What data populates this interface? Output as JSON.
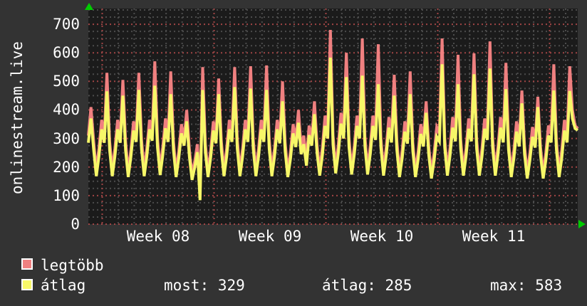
{
  "title_vertical": "onlinestream.live",
  "colors": {
    "bg_outer": "#333333",
    "bg_plot": "#1b1b1b",
    "grid_minor": "#4c4c4c",
    "grid_major": "#a04545",
    "series_legtobb": "#ef8080",
    "series_atlag": "#f7f768",
    "arrow_green": "#00cc00",
    "text": "#ffffff"
  },
  "legend": {
    "item1": "legtöbb",
    "item2": "átlag"
  },
  "stats": {
    "most": "most: 329",
    "atlag": "átlag: 285",
    "max": "max: 583"
  },
  "chart_data": {
    "type": "line",
    "title": "onlinestream.live",
    "xlabel": "",
    "ylabel": "",
    "x_tick_labels": [
      "Week 08",
      "Week 09",
      "Week 10",
      "Week 11"
    ],
    "y_ticks": [
      0,
      100,
      200,
      300,
      400,
      500,
      600,
      700
    ],
    "ylim": [
      0,
      755
    ],
    "grid": "dotted; minor y every 25, major y every 100 (red); minor x daily, major x weekly (red)",
    "legend_position": "bottom-left",
    "samples_per_day": 6,
    "days_visible": 30.6,
    "series": [
      {
        "name": "legtöbb",
        "color": "#ef8080",
        "values": [
          310,
          410,
          290,
          190,
          265,
          365,
          310,
          530,
          290,
          190,
          265,
          365,
          310,
          505,
          290,
          185,
          260,
          360,
          315,
          530,
          295,
          190,
          265,
          365,
          320,
          570,
          300,
          195,
          270,
          370,
          315,
          535,
          290,
          185,
          255,
          350,
          300,
          400,
          260,
          175,
          220,
          280,
          100,
          550,
          280,
          185,
          260,
          360,
          310,
          510,
          290,
          190,
          265,
          365,
          315,
          550,
          295,
          190,
          265,
          365,
          315,
          553,
          295,
          190,
          265,
          365,
          315,
          556,
          295,
          190,
          265,
          365,
          310,
          500,
          285,
          185,
          255,
          350,
          295,
          400,
          270,
          310,
          230,
          345,
          300,
          430,
          275,
          190,
          270,
          380,
          330,
          680,
          310,
          200,
          280,
          390,
          330,
          600,
          300,
          195,
          275,
          380,
          330,
          650,
          305,
          195,
          275,
          380,
          325,
          630,
          300,
          190,
          270,
          375,
          315,
          523,
          290,
          185,
          260,
          360,
          310,
          535,
          285,
          185,
          255,
          350,
          300,
          430,
          270,
          180,
          250,
          340,
          320,
          650,
          300,
          190,
          270,
          375,
          320,
          593,
          295,
          190,
          265,
          370,
          320,
          598,
          295,
          190,
          265,
          370,
          325,
          640,
          300,
          190,
          270,
          375,
          315,
          565,
          290,
          185,
          260,
          360,
          300,
          468,
          275,
          180,
          250,
          340,
          295,
          446,
          270,
          180,
          250,
          345,
          315,
          560,
          290,
          185,
          260,
          365,
          315,
          553,
          400,
          345,
          335
        ]
      },
      {
        "name": "átlag",
        "color": "#f7f768",
        "values": [
          285,
          370,
          260,
          168,
          238,
          332,
          285,
          465,
          260,
          168,
          238,
          332,
          285,
          450,
          258,
          165,
          235,
          328,
          288,
          470,
          262,
          168,
          238,
          332,
          292,
          485,
          268,
          172,
          242,
          336,
          288,
          455,
          260,
          165,
          230,
          318,
          275,
          360,
          235,
          155,
          198,
          252,
          84,
          470,
          252,
          165,
          235,
          328,
          283,
          455,
          260,
          168,
          238,
          332,
          288,
          480,
          264,
          168,
          238,
          332,
          288,
          475,
          264,
          168,
          238,
          332,
          288,
          470,
          264,
          168,
          238,
          332,
          283,
          430,
          256,
          165,
          230,
          318,
          270,
          355,
          245,
          280,
          205,
          312,
          275,
          385,
          248,
          170,
          242,
          344,
          300,
          583,
          278,
          178,
          250,
          352,
          300,
          515,
          270,
          174,
          246,
          344,
          300,
          520,
          272,
          174,
          246,
          344,
          295,
          490,
          268,
          170,
          242,
          338,
          286,
          450,
          260,
          165,
          232,
          324,
          282,
          455,
          256,
          165,
          228,
          316,
          272,
          390,
          242,
          160,
          224,
          306,
          290,
          560,
          268,
          170,
          242,
          338,
          290,
          490,
          264,
          170,
          238,
          334,
          290,
          525,
          264,
          170,
          238,
          334,
          295,
          545,
          268,
          170,
          242,
          338,
          286,
          473,
          260,
          165,
          232,
          324,
          272,
          423,
          246,
          160,
          224,
          306,
          268,
          410,
          243,
          160,
          224,
          310,
          286,
          468,
          260,
          165,
          232,
          328,
          286,
          466,
          370,
          335,
          329
        ]
      }
    ]
  }
}
